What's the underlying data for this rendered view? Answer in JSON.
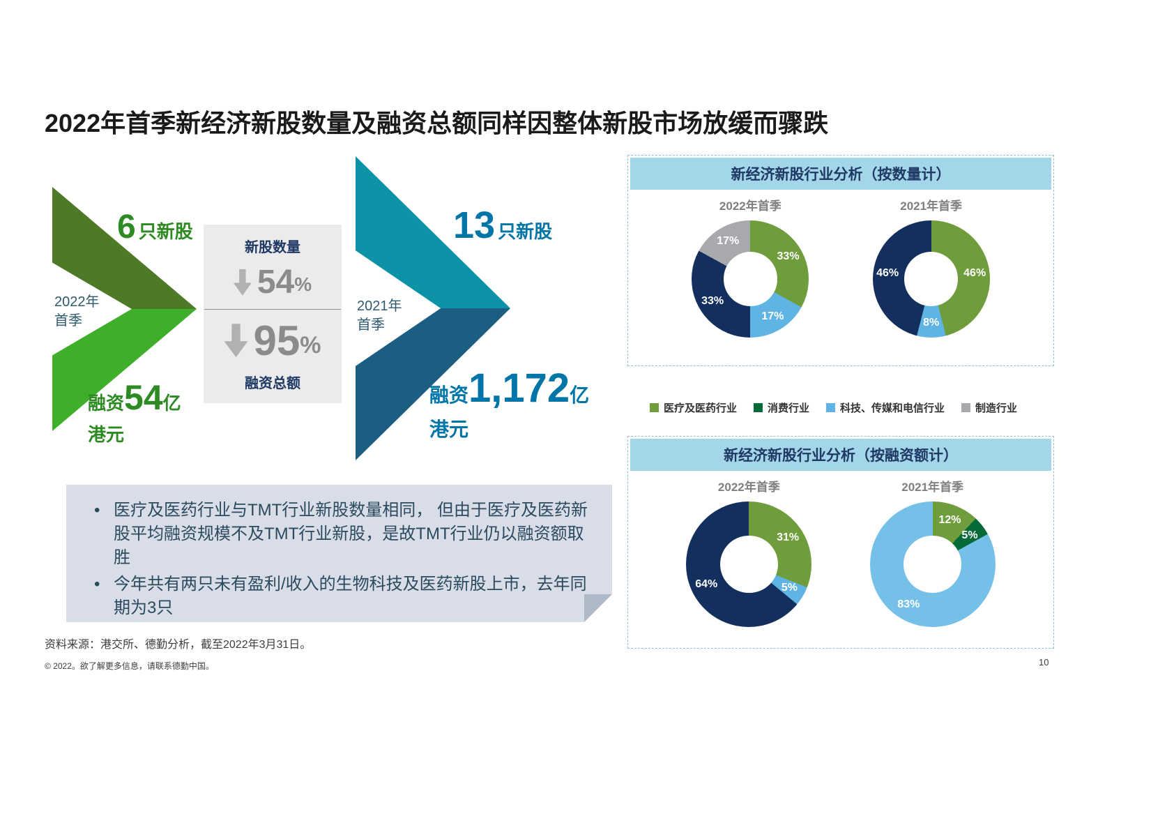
{
  "title": "2022年首季新经济新股数量及融资总额同样因整体新股市场放缓而骤跌",
  "comparison": {
    "y2022": {
      "period_line1": "2022年",
      "period_line2": "首季",
      "count_value": "6",
      "count_label": "只新股",
      "funding_prefix": "融资",
      "funding_value": "54",
      "funding_unit": "亿",
      "funding_currency": "港元"
    },
    "y2021": {
      "period_line1": "2021年",
      "period_line2": "首季",
      "count_value": "13",
      "count_label": "只新股",
      "funding_prefix": "融资",
      "funding_value": "1,172",
      "funding_unit": "亿",
      "funding_currency": "港元"
    },
    "change_box": {
      "top_label": "新股数量",
      "count_drop_value": "54",
      "count_drop_sign": "%",
      "funding_drop_value": "95",
      "funding_drop_sign": "%",
      "bottom_label": "融资总额"
    }
  },
  "panels": [
    {
      "header": "新经济新股行业分析（按数量计）"
    },
    {
      "header": "新经济新股行业分析（按融资额计）"
    }
  ],
  "legend": {
    "items": [
      {
        "label": "医疗及医药行业",
        "color": "#6f9d3c"
      },
      {
        "label": "消费行业",
        "color": "#046a38"
      },
      {
        "label": "科技、传媒和电信行业",
        "color": "#5fb4e4"
      },
      {
        "label": "制造行业",
        "color": "#a7a9ac"
      }
    ]
  },
  "chart_data": [
    {
      "type": "pie",
      "subtype": "donut",
      "panel": "新经济新股行业分析（按数量计）",
      "title": "2022年首季",
      "unit": "%",
      "segments": [
        {
          "label": "33%",
          "value": 33,
          "color": "#6f9d3c"
        },
        {
          "label": "17%",
          "value": 17,
          "color": "#5fb4e4"
        },
        {
          "label": "33%",
          "value": 33,
          "color": "#132f5e"
        },
        {
          "label": "17%",
          "value": 17,
          "color": "#a7a9ac"
        }
      ]
    },
    {
      "type": "pie",
      "subtype": "donut",
      "panel": "新经济新股行业分析（按数量计）",
      "title": "2021年首季",
      "unit": "%",
      "segments": [
        {
          "label": "46%",
          "value": 46,
          "color": "#6f9d3c"
        },
        {
          "label": "8%",
          "value": 8,
          "color": "#5fb4e4"
        },
        {
          "label": "46%",
          "value": 46,
          "color": "#132f5e"
        }
      ]
    },
    {
      "type": "pie",
      "subtype": "donut",
      "panel": "新经济新股行业分析（按融资额计）",
      "title": "2022年首季",
      "unit": "%",
      "segments": [
        {
          "label": "31%",
          "value": 31,
          "color": "#6f9d3c"
        },
        {
          "label": "5%",
          "value": 5,
          "color": "#5fb4e4"
        },
        {
          "label": "64%",
          "value": 64,
          "color": "#132f5e"
        }
      ]
    },
    {
      "type": "pie",
      "subtype": "donut",
      "panel": "新经济新股行业分析（按融资额计）",
      "title": "2021年首季",
      "unit": "%",
      "segments": [
        {
          "label": "12%",
          "value": 12,
          "color": "#6f9d3c"
        },
        {
          "label": "5%",
          "value": 5,
          "color": "#046a38"
        },
        {
          "label": "83%",
          "value": 83,
          "color": "#74c0e8"
        }
      ]
    }
  ],
  "note_box": {
    "bullets": [
      "医疗及医药行业与TMT行业新股数量相同， 但由于医疗及医药新股平均融资规模不及TMT行业新股，是故TMT行业仍以融资额取胜",
      "今年共有两只未有盈利/收入的生物科技及医药新股上市，去年同期为3只"
    ]
  },
  "footer": {
    "source": "资料来源：港交所、德勤分析，截至2022年3月31日。",
    "copyright": "© 2022。欲了解更多信息，请联系德勤中国。",
    "page_number": "10"
  }
}
